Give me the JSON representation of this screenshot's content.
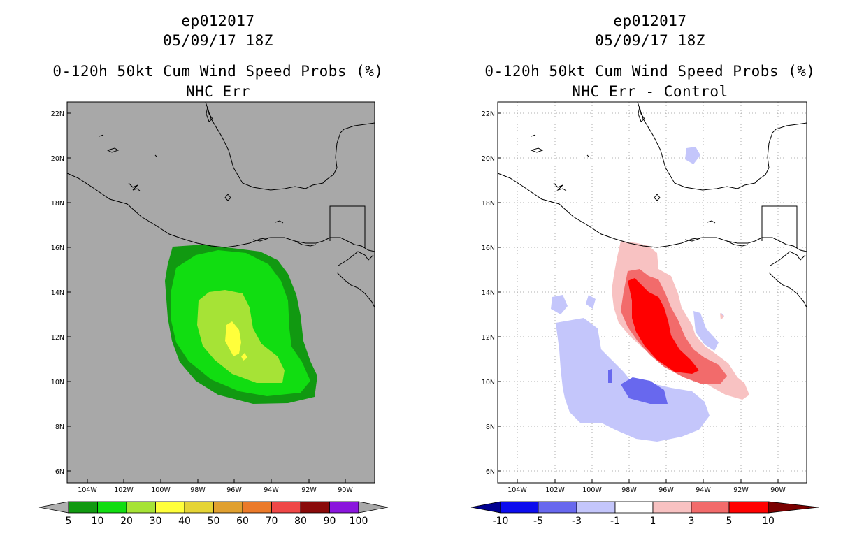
{
  "panels": [
    {
      "storm": "ep012017",
      "datetime": "05/09/17 18Z",
      "product": "0-120h 50kt Cum Wind Speed Probs (%)",
      "subtitle": "NHC Err",
      "colorbar": {
        "labels": [
          "5",
          "10",
          "20",
          "30",
          "40",
          "50",
          "60",
          "70",
          "80",
          "90",
          "100"
        ],
        "colors": [
          "#119911",
          "#11dd11",
          "#a6e336",
          "#ffff3b",
          "#e5d436",
          "#e0a030",
          "#eb7a2a",
          "#ef4747",
          "#8a0a0a",
          "#8a15dd"
        ],
        "under_color": "#b0b0b0",
        "over_color": "#a8a8a8"
      },
      "background_color": "#a8a8a8"
    },
    {
      "storm": "ep012017",
      "datetime": "05/09/17 18Z",
      "product": "0-120h 50kt Cum Wind Speed Probs (%)",
      "subtitle": "NHC Err - Control",
      "colorbar": {
        "labels": [
          "-10",
          "-5",
          "-3",
          "-1",
          "1",
          "3",
          "5",
          "10"
        ],
        "colors": [
          "#0c0cee",
          "#6868ee",
          "#c4c6fb",
          "#ffffff",
          "#f8c2c2",
          "#f26b6b",
          "#ff0000"
        ],
        "under_color": "#000090",
        "over_color": "#7a0000"
      },
      "background_color": "#ffffff"
    }
  ],
  "axes": {
    "lat_labels": [
      "22N",
      "20N",
      "18N",
      "16N",
      "14N",
      "12N",
      "10N",
      "8N",
      "6N"
    ],
    "lon_labels": [
      "104W",
      "102W",
      "100W",
      "98W",
      "96W",
      "94W",
      "92W",
      "90W"
    ]
  }
}
